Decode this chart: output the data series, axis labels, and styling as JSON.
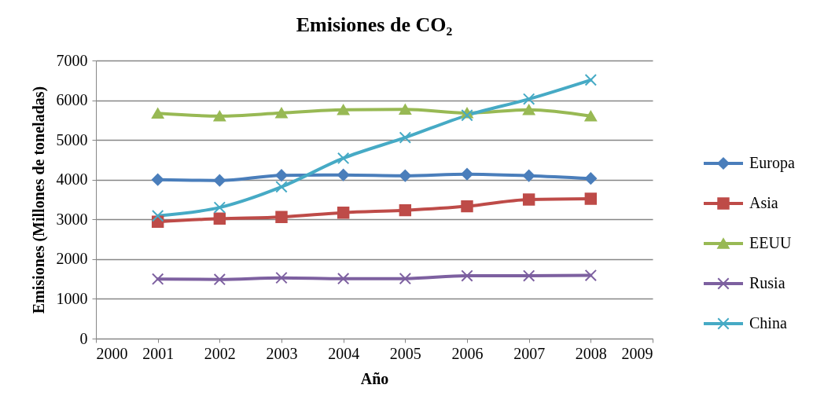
{
  "chart_data": {
    "type": "line",
    "title": "Emisiones de CO₂",
    "xlabel": "Año",
    "ylabel": "Emisiones (Millones de toneladas)",
    "x": [
      2001,
      2002,
      2003,
      2004,
      2005,
      2006,
      2007,
      2008
    ],
    "series": [
      {
        "name": "Europa",
        "color": "#4a7ebb",
        "marker": "diamond",
        "values": [
          4000,
          3980,
          4110,
          4120,
          4100,
          4140,
          4100,
          4030
        ]
      },
      {
        "name": "Asia",
        "color": "#be4b48",
        "marker": "square",
        "values": [
          2940,
          3020,
          3060,
          3170,
          3230,
          3330,
          3500,
          3520
        ]
      },
      {
        "name": "EEUU",
        "color": "#98b954",
        "marker": "triangle",
        "values": [
          5670,
          5600,
          5680,
          5760,
          5770,
          5680,
          5760,
          5600
        ]
      },
      {
        "name": "Rusia",
        "color": "#7d60a0",
        "marker": "cross",
        "values": [
          1500,
          1490,
          1530,
          1510,
          1510,
          1580,
          1580,
          1590
        ]
      },
      {
        "name": "China",
        "color": "#46aac5",
        "marker": "cross",
        "values": [
          3090,
          3300,
          3820,
          4540,
          5060,
          5620,
          6030,
          6510
        ]
      }
    ],
    "xlim": [
      2000,
      2009
    ],
    "xticks": [
      2000,
      2001,
      2002,
      2003,
      2004,
      2005,
      2006,
      2007,
      2008,
      2009
    ],
    "ylim": [
      0,
      7000
    ],
    "yticks": [
      0,
      1000,
      2000,
      3000,
      4000,
      5000,
      6000,
      7000
    ],
    "grid": "y",
    "legend": "right",
    "line_style": "solid"
  }
}
